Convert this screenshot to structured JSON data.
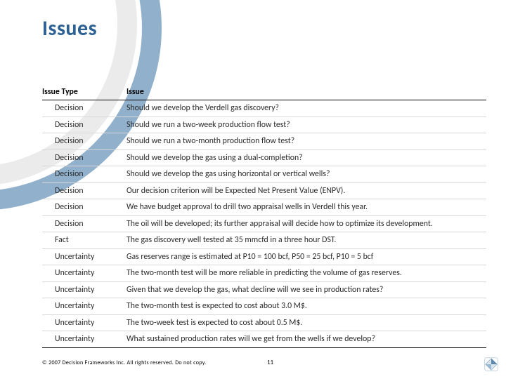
{
  "title": "Issues",
  "table": {
    "headers": {
      "type": "Issue Type",
      "issue": "Issue"
    },
    "rows": [
      {
        "type": "Decision",
        "issue": "Should we develop the Verdell gas discovery?"
      },
      {
        "type": "Decision",
        "issue": "Should we run a two-week production flow test?"
      },
      {
        "type": "Decision",
        "issue": "Should we run a two-month production flow test?"
      },
      {
        "type": "Decision",
        "issue": "Should we develop the gas using a dual-completion?"
      },
      {
        "type": "Decision",
        "issue": "Should we develop the gas using horizontal or vertical wells?"
      },
      {
        "type": "Decision",
        "issue": "Our decision criterion will be Expected Net Present Value (ENPV)."
      },
      {
        "type": "Decision",
        "issue": "We have budget approval to drill two appraisal wells in Verdell this year."
      },
      {
        "type": "Decision",
        "issue": "The oil will be developed; its further appraisal will decide how to optimize its development."
      },
      {
        "type": "Fact",
        "issue": "The gas discovery well tested at 35 mmcfd in a three hour DST."
      },
      {
        "type": "Uncertainty",
        "issue": "Gas reserves range is estimated at P10 = 100 bcf, P50 = 25 bcf, P10 = 5 bcf"
      },
      {
        "type": "Uncertainty",
        "issue": "The two-month test will be more reliable in predicting the volume of gas reserves."
      },
      {
        "type": "Uncertainty",
        "issue": "Given that we develop the gas, what decline will we see in production rates?"
      },
      {
        "type": "Uncertainty",
        "issue": "The two-month test is expected to cost about 3.0 M$."
      },
      {
        "type": "Uncertainty",
        "issue": "The two-week test is expected to cost about 0.5 M$."
      },
      {
        "type": "Uncertainty",
        "issue": "What sustained production rates will we get from the wells if we develop?"
      }
    ]
  },
  "footer": "© 2007 Decision Frameworks Inc. All rights reserved. Do not copy.",
  "page_number": "11",
  "colors": {
    "title": "#2d6193",
    "arc_outer": "#6b95b9",
    "arc_inner": "#e8e8e8",
    "row_border": "#d8d8d8"
  }
}
